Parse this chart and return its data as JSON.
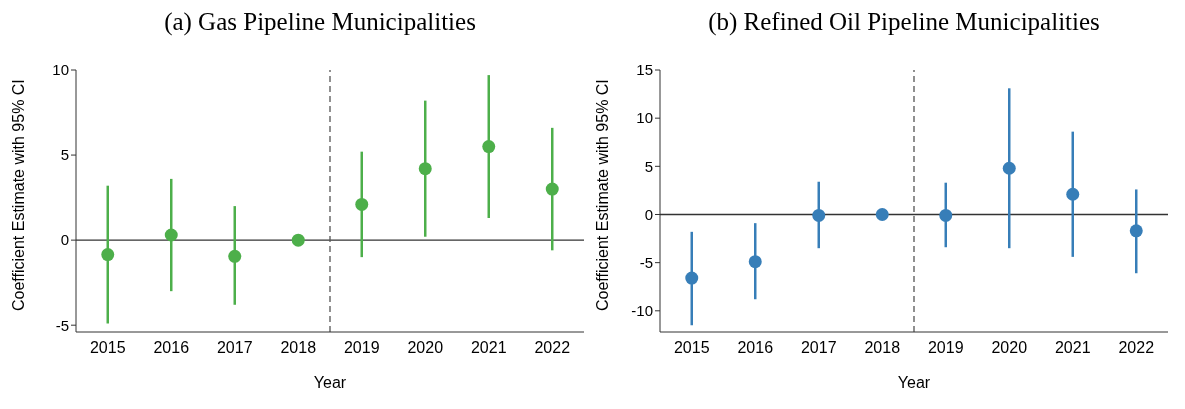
{
  "chart_data": [
    {
      "type": "scatter",
      "title": "(a) Gas Pipeline Municipalities",
      "xlabel": "Year",
      "ylabel": "Coefficient Estimate with 95% CI",
      "x": [
        2015,
        2016,
        2017,
        2018,
        2019,
        2020,
        2021,
        2022
      ],
      "xlim": [
        2014.5,
        2022.5
      ],
      "xticks": [
        2015,
        2016,
        2017,
        2018,
        2019,
        2020,
        2021,
        2022
      ],
      "ylim": [
        -5.4,
        10
      ],
      "yticks": [
        -5,
        0,
        5,
        10
      ],
      "marker": "circle",
      "grid": false,
      "legend": false,
      "series": [
        {
          "color": "#4daf4a",
          "values": [
            -0.85,
            0.3,
            -0.95,
            0,
            2.1,
            4.2,
            5.5,
            3.0
          ],
          "errors": [
            [
              -4.9,
              3.2
            ],
            [
              -3.0,
              3.6
            ],
            [
              -3.8,
              2.0
            ],
            null,
            [
              -1.0,
              5.2
            ],
            [
              0.2,
              8.2
            ],
            [
              1.3,
              9.7
            ],
            [
              -0.6,
              6.6
            ]
          ]
        }
      ],
      "ref_lines": [
        {
          "axis": "y",
          "value": 0,
          "color": "#333333",
          "line_style": "solid"
        },
        {
          "axis": "x",
          "value": 2018.5,
          "color": "#555555",
          "line_style": "dashed"
        }
      ]
    },
    {
      "type": "scatter",
      "title": "(b) Refined Oil Pipeline Municipalities",
      "xlabel": "Year",
      "ylabel": "Coefficient Estimate with 95% CI",
      "x": [
        2015,
        2016,
        2017,
        2018,
        2019,
        2020,
        2021,
        2022
      ],
      "xlim": [
        2014.5,
        2022.5
      ],
      "xticks": [
        2015,
        2016,
        2017,
        2018,
        2019,
        2020,
        2021,
        2022
      ],
      "ylim": [
        -12.2,
        15
      ],
      "yticks": [
        -10,
        -5,
        0,
        5,
        10,
        15
      ],
      "marker": "circle",
      "grid": false,
      "legend": false,
      "series": [
        {
          "color": "#377eb8",
          "values": [
            -6.6,
            -4.9,
            -0.1,
            0,
            -0.1,
            4.8,
            2.1,
            -1.7
          ],
          "errors": [
            [
              -11.5,
              -1.8
            ],
            [
              -8.8,
              -0.9
            ],
            [
              -3.5,
              3.4
            ],
            null,
            [
              -3.4,
              3.3
            ],
            [
              -3.5,
              13.1
            ],
            [
              -4.4,
              8.6
            ],
            [
              -6.1,
              2.6
            ]
          ]
        }
      ],
      "ref_lines": [
        {
          "axis": "y",
          "value": 0,
          "color": "#333333",
          "line_style": "solid"
        },
        {
          "axis": "x",
          "value": 2018.5,
          "color": "#555555",
          "line_style": "dashed"
        }
      ]
    }
  ]
}
